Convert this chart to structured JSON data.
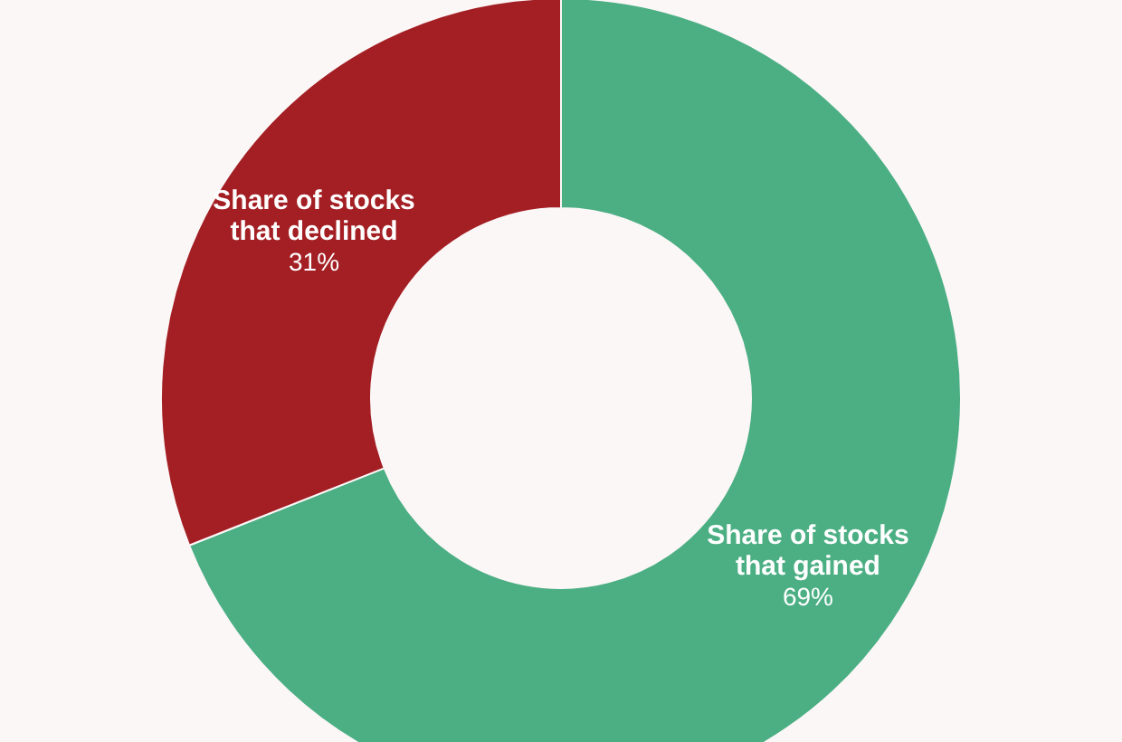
{
  "chart_data": {
    "type": "donut",
    "categories": [
      "Share of stocks that gained",
      "Share of stocks that declined"
    ],
    "values": [
      69,
      31
    ],
    "colors": [
      "#4caf84",
      "#a31f24"
    ],
    "value_labels": [
      "69%",
      "31%"
    ]
  }
}
